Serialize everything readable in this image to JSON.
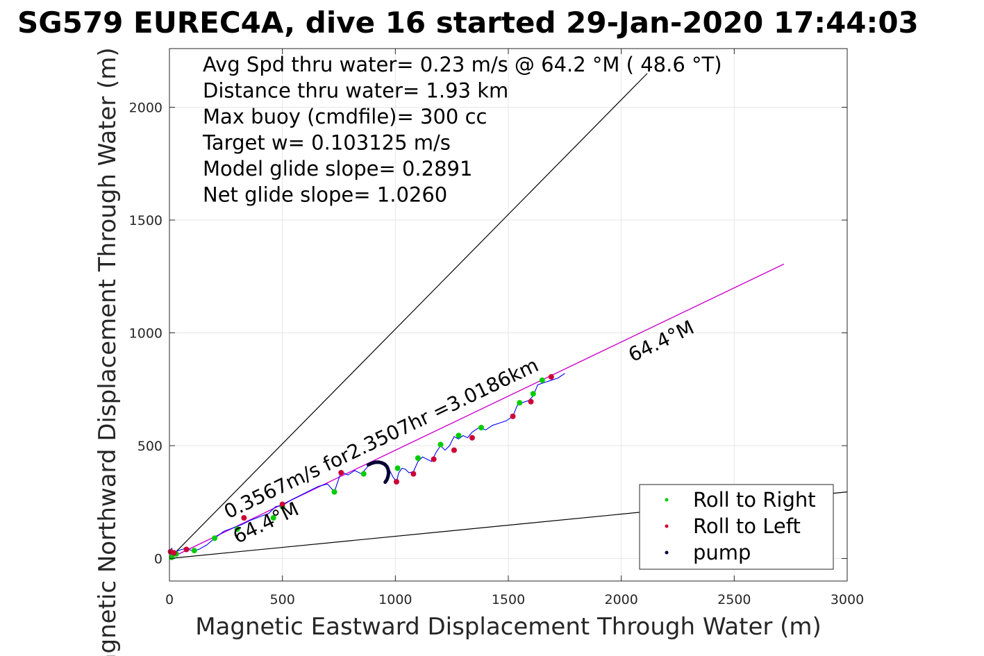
{
  "chart_data": {
    "type": "line",
    "title": "SG579 EUREC4A, dive 16 started 29-Jan-2020 17:44:03",
    "xlabel": "Magnetic Eastward Displacement Through Water (m)",
    "ylabel": "Magnetic Northward Displacement Through Water (m)",
    "xlim": [
      0,
      3000
    ],
    "ylim": [
      -100,
      2260
    ],
    "xticks": [
      0,
      500,
      1000,
      1500,
      2000,
      2500,
      3000
    ],
    "yticks": [
      0,
      500,
      1000,
      1500,
      2000
    ],
    "grid": true,
    "legend_position": "bottom-right",
    "annotations": [
      "Avg Spd thru water=  0.23 m/s @  64.2 °M ( 48.6 °T)",
      "Distance thru water=  1.93 km",
      "Max buoy (cmdfile)= 300 cc",
      "Target w= 0.103125 m/s",
      "Model glide slope= 0.2891",
      "Net glide slope= 1.0260"
    ],
    "rotated_labels": [
      {
        "text": "0.3567m/s for2.3507hr =3.0186km",
        "x": 260,
        "y": 175,
        "angle_deg": 25.6
      },
      {
        "text": "64.4°M",
        "x": 300,
        "y": 65,
        "angle_deg": 25.6
      },
      {
        "text": "64.4°M",
        "x": 2050,
        "y": 870,
        "angle_deg": 25.6
      }
    ],
    "reference_lines": [
      {
        "name": "upper-bound",
        "color": "#000000",
        "x": [
          0,
          2115
        ],
        "y": [
          0,
          2150
        ]
      },
      {
        "name": "lower-bound",
        "color": "#000000",
        "x": [
          0,
          3000
        ],
        "y": [
          0,
          295
        ]
      },
      {
        "name": "current-vector",
        "color": "#cc00cc",
        "x": [
          0,
          2720
        ],
        "y": [
          0,
          1305
        ]
      }
    ],
    "series": [
      {
        "color": "#0000ff",
        "x": [
          0,
          5,
          15,
          10,
          5,
          15,
          40,
          70,
          100,
          130,
          165,
          200,
          240,
          280,
          320,
          360,
          400,
          440,
          470,
          500,
          540,
          580,
          620,
          660,
          700,
          730,
          760,
          790,
          820,
          850,
          880,
          910,
          940,
          960,
          975,
          990,
          1005,
          1015,
          1030,
          1045,
          1060,
          1080,
          1100,
          1120,
          1140,
          1160,
          1180,
          1200,
          1220,
          1240,
          1260,
          1280,
          1300,
          1320,
          1340,
          1370,
          1400,
          1430,
          1460,
          1490,
          1520,
          1540,
          1560,
          1590,
          1610,
          1630,
          1660,
          1690,
          1720,
          1750
        ],
        "y": [
          0,
          15,
          30,
          45,
          35,
          25,
          35,
          45,
          35,
          40,
          60,
          90,
          120,
          135,
          150,
          170,
          185,
          200,
          230,
          235,
          260,
          280,
          300,
          320,
          330,
          295,
          385,
          370,
          390,
          375,
          410,
          425,
          420,
          410,
          390,
          360,
          340,
          380,
          400,
          395,
          380,
          385,
          430,
          450,
          440,
          430,
          470,
          500,
          480,
          500,
          540,
          530,
          545,
          535,
          560,
          580,
          570,
          590,
          600,
          610,
          630,
          680,
          690,
          700,
          720,
          770,
          780,
          790,
          800,
          820
        ]
      }
    ],
    "roll_right_points": {
      "color": "#00cc00",
      "x": [
        10,
        30,
        110,
        200,
        300,
        460,
        500,
        730,
        860,
        1010,
        1100,
        1200,
        1280,
        1380,
        1550,
        1610,
        1650
      ],
      "y": [
        5,
        20,
        35,
        90,
        130,
        180,
        230,
        295,
        375,
        400,
        445,
        505,
        545,
        580,
        690,
        730,
        790
      ]
    },
    "roll_left_points": {
      "color": "#cc0033",
      "x": [
        5,
        20,
        75,
        330,
        500,
        760,
        1005,
        1080,
        1170,
        1260,
        1340,
        1520,
        1600,
        1690
      ],
      "y": [
        30,
        25,
        40,
        180,
        240,
        380,
        340,
        375,
        440,
        480,
        535,
        630,
        695,
        805
      ]
    },
    "pump_points": {
      "color": "#000033",
      "x": [
        880,
        895,
        910,
        925,
        940,
        952,
        962,
        968,
        970,
        968,
        963,
        955
      ],
      "y": [
        415,
        422,
        426,
        427,
        424,
        418,
        408,
        395,
        380,
        365,
        350,
        338
      ]
    },
    "legend": [
      {
        "label": "Roll to Right",
        "color": "#00cc00"
      },
      {
        "label": "Roll to Left",
        "color": "#cc0033"
      },
      {
        "label": "pump",
        "color": "#000033"
      }
    ]
  }
}
